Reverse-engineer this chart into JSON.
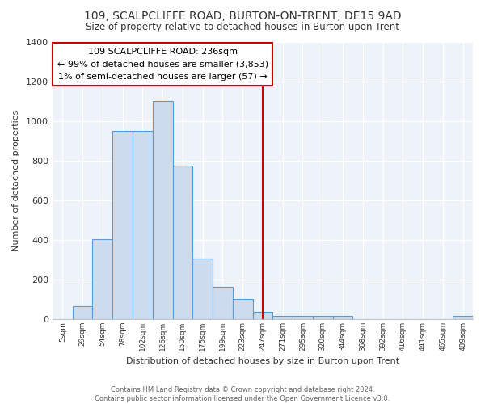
{
  "title": "109, SCALPCLIFFE ROAD, BURTON-ON-TRENT, DE15 9AD",
  "subtitle": "Size of property relative to detached houses in Burton upon Trent",
  "xlabel": "Distribution of detached houses by size in Burton upon Trent",
  "ylabel": "Number of detached properties",
  "footnote": "Contains HM Land Registry data © Crown copyright and database right 2024.\nContains public sector information licensed under the Open Government Licence v3.0.",
  "bin_labels": [
    "5sqm",
    "29sqm",
    "54sqm",
    "78sqm",
    "102sqm",
    "126sqm",
    "150sqm",
    "175sqm",
    "199sqm",
    "223sqm",
    "247sqm",
    "271sqm",
    "295sqm",
    "320sqm",
    "344sqm",
    "368sqm",
    "392sqm",
    "416sqm",
    "441sqm",
    "465sqm",
    "489sqm"
  ],
  "bar_heights": [
    0,
    65,
    405,
    950,
    950,
    1100,
    775,
    305,
    165,
    100,
    35,
    15,
    15,
    15,
    15,
    0,
    0,
    0,
    0,
    0,
    15
  ],
  "bar_color": "#ccdcee",
  "bar_edge_color": "#5b9bd5",
  "vline_x": 10.0,
  "vline_color": "#cc0000",
  "annotation_text": "109 SCALPCLIFFE ROAD: 236sqm\n← 99% of detached houses are smaller (3,853)\n1% of semi-detached houses are larger (57) →",
  "annotation_box_color": "#ffffff",
  "annotation_box_edge_color": "#cc0000",
  "ylim": [
    0,
    1400
  ],
  "background_color": "#ffffff",
  "plot_bg_color": "#eef3f9",
  "grid_color": "#ffffff"
}
